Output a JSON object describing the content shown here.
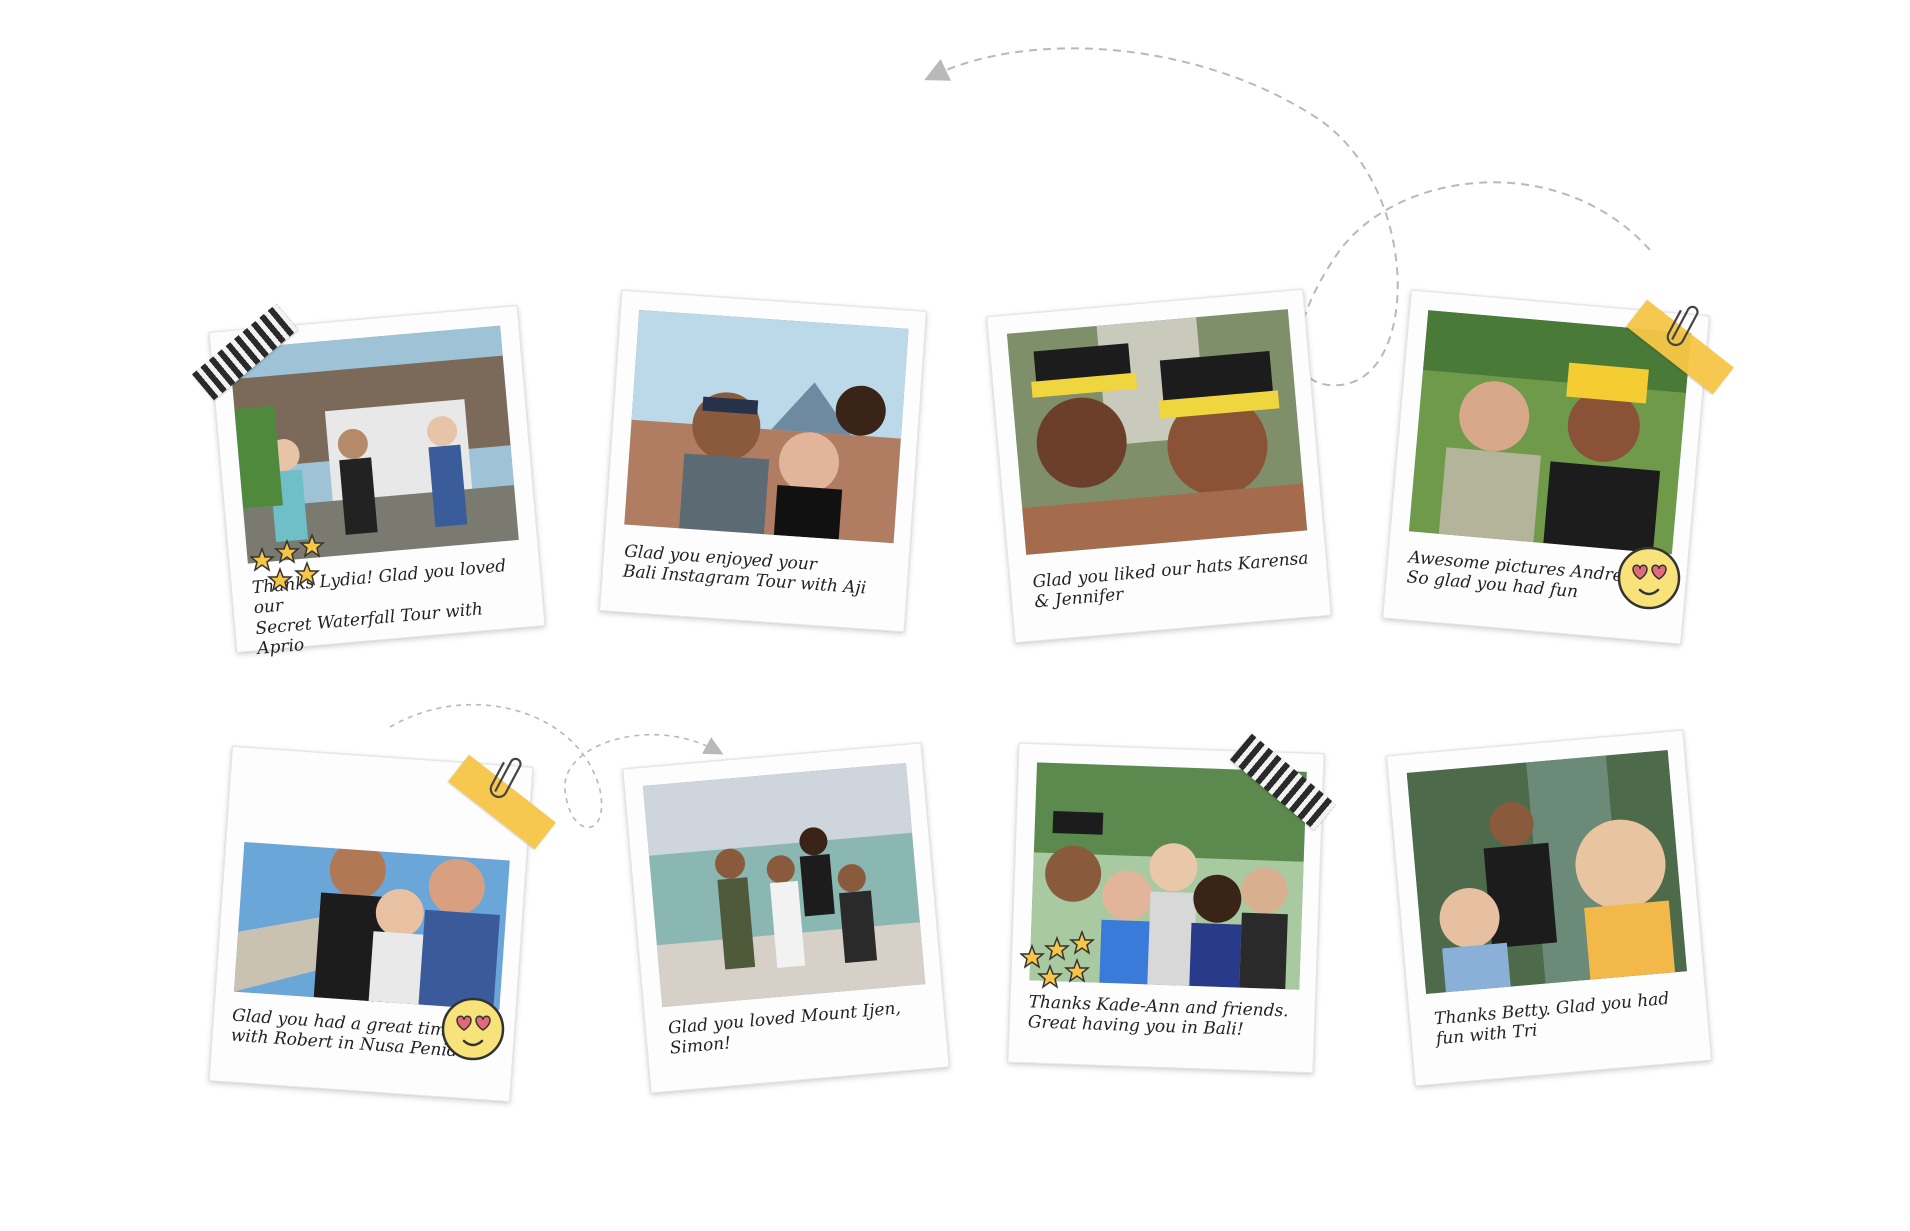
{
  "polaroids": [
    {
      "caption": "Thanks Lydia! Glad you loved our\nSecret Waterfall Tour  with Aprio",
      "photo_desc": "tour group photo"
    },
    {
      "caption": "Glad you enjoyed your\nBali Instagram Tour with Aji",
      "photo_desc": "selfie"
    },
    {
      "caption": "Glad you liked our hats Karensa\n& Jennifer",
      "photo_desc": "selfie with hats"
    },
    {
      "caption": "Awesome pictures Andrea!\nSo glad you had fun",
      "photo_desc": "rice terrace selfie"
    },
    {
      "caption": "Glad you had a great time\nwith Robert in Nusa Penida!",
      "photo_desc": "cliff selfie"
    },
    {
      "caption": "Glad you loved Mount Ijen,\nSimon!",
      "photo_desc": "crater group"
    },
    {
      "caption": "Thanks Kade-Ann and friends.\nGreat having you in Bali!",
      "photo_desc": "group selfie"
    },
    {
      "caption": "Thanks Betty. Glad you had\nfun with Tri",
      "photo_desc": "waterfall selfie"
    }
  ],
  "colors": {
    "tape_yellow": "#f6c646",
    "star_yellow": "#f6c646",
    "emoji_yellow": "#f8e27a",
    "dash_line": "#b9b9b9"
  }
}
